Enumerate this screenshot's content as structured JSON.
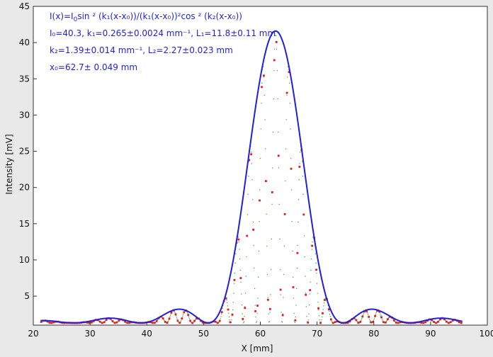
{
  "chart_data": {
    "type": "line",
    "title": "",
    "xlabel": "X [mm]",
    "ylabel": "Intensity [mV]",
    "xlim": [
      20,
      100
    ],
    "ylim": [
      1,
      45
    ],
    "xticks": [
      20,
      30,
      40,
      50,
      60,
      70,
      80,
      90,
      100
    ],
    "yticks": [
      5,
      10,
      15,
      20,
      25,
      30,
      35,
      40,
      45
    ],
    "grid": false,
    "colors": {
      "fit": "#1f1fdc",
      "red_points": "#e21c1c",
      "green_points": "#2e9a2e",
      "annotation": "#1f1fd6",
      "plot_background": "#ffffff"
    },
    "fit_model": {
      "I0": 40.3,
      "k1": 0.265,
      "L1": 11.8,
      "k2": 1.39,
      "L2": 2.27,
      "x0": 62.7,
      "x_range": [
        21.3,
        95.6
      ],
      "offset": 1.3
    },
    "annotations": [
      {
        "prefix": "I(x)=I",
        "sub": "0",
        "rest": "sin ² (k₁(x-x₀))/(k₁(x-x₀))²cos ² (k₂(x-x₀))"
      },
      {
        "text": "I₀=40.3,  k₁=0.265±0.0024 mm⁻¹,   L₁=11.8±0.11 mm"
      },
      {
        "text": "k₂=1.39±0.014 mm⁻¹,   L₂=2.27±0.023 mm"
      },
      {
        "text": "x₀=62.7±  0.049 mm"
      }
    ],
    "series": [
      {
        "style": "blue line (envelope fit)"
      },
      {
        "style": "red square points (measured)"
      },
      {
        "style": "green dots (fine sampled fit)"
      }
    ]
  }
}
